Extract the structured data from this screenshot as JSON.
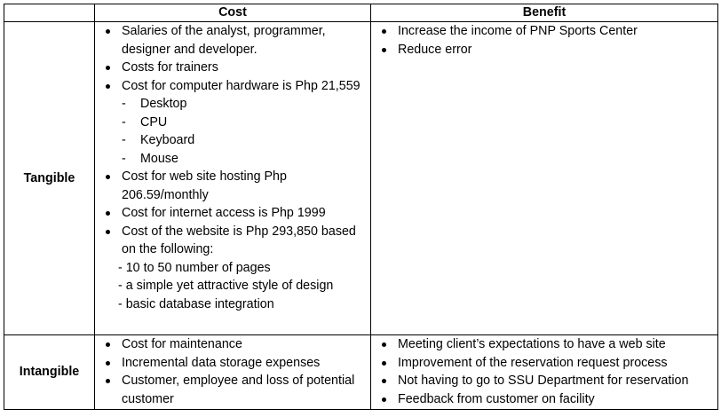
{
  "header": {
    "corner": "",
    "cost": "Cost",
    "benefit": "Benefit"
  },
  "tangible": {
    "label": "Tangible",
    "costs": {
      "salaries": "Salaries of the analyst, programmer, designer and developer.",
      "trainers": "Costs for trainers",
      "hardware": "Cost for computer hardware is Php 21,559",
      "hardware_items": [
        "Desktop",
        "CPU",
        "Keyboard",
        "Mouse"
      ],
      "hosting": "Cost for web site hosting Php 206.59/monthly",
      "internet": "Cost for internet access is Php 1999",
      "website": "Cost of the website is Php 293,850 based on the following:",
      "website_items": [
        "- 10 to 50 number of pages",
        "- a simple yet attractive style of design",
        "- basic database integration"
      ]
    },
    "benefits": [
      "Increase the income of PNP Sports Center",
      "Reduce error"
    ]
  },
  "intangible": {
    "label": "Intangible",
    "costs": [
      "Cost for maintenance",
      "Incremental data storage expenses",
      "Customer, employee and loss of potential customer"
    ],
    "benefits": [
      "Meeting client’s expectations to have a web site",
      "Improvement of the reservation request process",
      "Not having to go to SSU Department for reservation",
      "Feedback from customer on facility"
    ]
  }
}
